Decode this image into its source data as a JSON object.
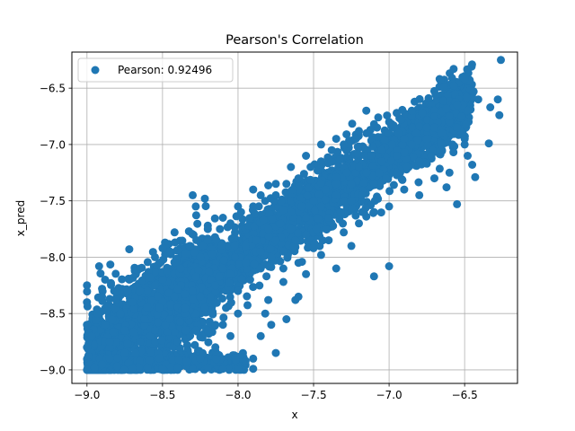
{
  "chart_data": {
    "type": "scatter",
    "title": "Pearson's Correlation",
    "xlabel": "x",
    "ylabel": "x_pred",
    "xlim": [
      -9.1,
      -6.15
    ],
    "ylim": [
      -9.12,
      -6.18
    ],
    "xticks": [
      -9.0,
      -8.5,
      -8.0,
      -7.5,
      -7.0,
      -6.5
    ],
    "xtick_labels": [
      "−9.0",
      "−8.5",
      "−8.0",
      "−7.5",
      "−7.0",
      "−6.5"
    ],
    "yticks": [
      -9.0,
      -8.5,
      -8.0,
      -7.5,
      -7.0,
      -6.5
    ],
    "ytick_labels": [
      "−9.0",
      "−8.5",
      "−8.0",
      "−7.5",
      "−7.0",
      "−6.5"
    ],
    "grid": true,
    "legend": {
      "position": "top-left",
      "entries": [
        "Pearson: 0.92496"
      ]
    },
    "color": "#1f77b4",
    "series": [
      {
        "name": "Pearson: 0.92496",
        "points": [
          [
            -9.0,
            -9.0
          ],
          [
            -8.95,
            -8.98
          ],
          [
            -8.9,
            -8.95
          ],
          [
            -8.85,
            -8.9
          ],
          [
            -8.8,
            -8.97
          ],
          [
            -8.7,
            -8.99
          ],
          [
            -8.6,
            -8.98
          ],
          [
            -8.5,
            -8.99
          ],
          [
            -8.4,
            -8.98
          ],
          [
            -8.3,
            -8.99
          ],
          [
            -8.2,
            -8.98
          ],
          [
            -8.1,
            -8.99
          ],
          [
            -8.0,
            -8.99
          ],
          [
            -7.9,
            -8.99
          ],
          [
            -9.0,
            -8.8
          ],
          [
            -9.0,
            -8.6
          ],
          [
            -9.0,
            -8.4
          ],
          [
            -9.0,
            -8.25
          ],
          [
            -8.97,
            -8.7
          ],
          [
            -8.93,
            -8.5
          ],
          [
            -8.9,
            -8.35
          ],
          [
            -8.92,
            -8.08
          ],
          [
            -8.88,
            -8.6
          ],
          [
            -8.85,
            -8.75
          ],
          [
            -8.82,
            -8.3
          ],
          [
            -8.78,
            -8.5
          ],
          [
            -8.75,
            -8.65
          ],
          [
            -8.72,
            -8.2
          ],
          [
            -8.7,
            -8.4
          ],
          [
            -8.68,
            -8.85
          ],
          [
            -8.65,
            -8.1
          ],
          [
            -8.62,
            -8.55
          ],
          [
            -8.6,
            -8.3
          ],
          [
            -8.58,
            -8.7
          ],
          [
            -8.55,
            -8.0
          ],
          [
            -8.52,
            -8.45
          ],
          [
            -8.5,
            -8.2
          ],
          [
            -8.48,
            -8.6
          ],
          [
            -8.45,
            -7.95
          ],
          [
            -8.42,
            -8.35
          ],
          [
            -8.4,
            -8.75
          ],
          [
            -8.38,
            -8.1
          ],
          [
            -8.35,
            -8.5
          ],
          [
            -8.32,
            -7.9
          ],
          [
            -8.3,
            -8.3
          ],
          [
            -8.28,
            -8.65
          ],
          [
            -8.25,
            -8.0
          ],
          [
            -8.22,
            -8.45
          ],
          [
            -8.2,
            -7.85
          ],
          [
            -8.18,
            -8.2
          ],
          [
            -8.15,
            -8.6
          ],
          [
            -8.12,
            -7.75
          ],
          [
            -8.1,
            -8.1
          ],
          [
            -8.08,
            -8.45
          ],
          [
            -8.05,
            -7.7
          ],
          [
            -8.02,
            -8.0
          ],
          [
            -8.0,
            -8.3
          ],
          [
            -7.98,
            -7.6
          ],
          [
            -7.95,
            -7.9
          ],
          [
            -7.92,
            -8.2
          ],
          [
            -7.9,
            -7.55
          ],
          [
            -7.88,
            -7.85
          ],
          [
            -7.85,
            -8.1
          ],
          [
            -7.82,
            -7.5
          ],
          [
            -7.8,
            -7.75
          ],
          [
            -7.78,
            -8.0
          ],
          [
            -7.75,
            -7.45
          ],
          [
            -7.72,
            -7.7
          ],
          [
            -7.7,
            -7.95
          ],
          [
            -7.68,
            -7.35
          ],
          [
            -7.65,
            -7.6
          ],
          [
            -7.62,
            -7.85
          ],
          [
            -7.6,
            -7.3
          ],
          [
            -7.58,
            -7.55
          ],
          [
            -7.55,
            -7.8
          ],
          [
            -7.52,
            -7.2
          ],
          [
            -7.5,
            -7.5
          ],
          [
            -7.48,
            -7.75
          ],
          [
            -7.45,
            -7.15
          ],
          [
            -7.42,
            -7.4
          ],
          [
            -7.4,
            -7.65
          ],
          [
            -7.38,
            -7.05
          ],
          [
            -7.35,
            -7.35
          ],
          [
            -7.32,
            -7.6
          ],
          [
            -7.3,
            -7.0
          ],
          [
            -7.28,
            -7.25
          ],
          [
            -7.25,
            -7.5
          ],
          [
            -7.22,
            -6.95
          ],
          [
            -7.2,
            -7.2
          ],
          [
            -7.18,
            -7.45
          ],
          [
            -7.15,
            -6.9
          ],
          [
            -7.12,
            -7.1
          ],
          [
            -7.1,
            -7.35
          ],
          [
            -7.08,
            -6.85
          ],
          [
            -7.05,
            -7.05
          ],
          [
            -7.02,
            -7.3
          ],
          [
            -7.0,
            -6.8
          ],
          [
            -6.98,
            -7.0
          ],
          [
            -6.95,
            -7.25
          ],
          [
            -6.92,
            -6.78
          ],
          [
            -6.9,
            -6.95
          ],
          [
            -6.88,
            -7.2
          ],
          [
            -6.85,
            -6.75
          ],
          [
            -6.82,
            -6.9
          ],
          [
            -6.8,
            -7.15
          ],
          [
            -6.78,
            -6.72
          ],
          [
            -6.75,
            -6.85
          ],
          [
            -6.72,
            -7.1
          ],
          [
            -6.7,
            -6.7
          ],
          [
            -6.68,
            -6.8
          ],
          [
            -6.65,
            -7.05
          ],
          [
            -6.62,
            -6.68
          ],
          [
            -6.6,
            -6.8
          ],
          [
            -6.58,
            -7.0
          ],
          [
            -6.55,
            -6.65
          ],
          [
            -6.52,
            -6.75
          ],
          [
            -6.5,
            -6.95
          ],
          [
            -6.48,
            -6.7
          ],
          [
            -6.5,
            -6.42
          ],
          [
            -6.44,
            -6.53
          ],
          [
            -6.41,
            -6.6
          ],
          [
            -6.34,
            -6.99
          ],
          [
            -6.33,
            -6.67
          ],
          [
            -6.28,
            -6.6
          ],
          [
            -6.27,
            -6.74
          ],
          [
            -6.26,
            -6.25
          ],
          [
            -6.43,
            -7.29
          ],
          [
            -6.55,
            -7.53
          ],
          [
            -6.75,
            -7.17
          ],
          [
            -7.0,
            -8.08
          ],
          [
            -7.1,
            -8.17
          ],
          [
            -7.25,
            -7.9
          ],
          [
            -7.35,
            -8.1
          ],
          [
            -7.45,
            -7.98
          ],
          [
            -7.55,
            -8.15
          ],
          [
            -7.6,
            -8.35
          ],
          [
            -7.7,
            -8.22
          ],
          [
            -7.8,
            -8.38
          ],
          [
            -7.82,
            -8.5
          ],
          [
            -7.85,
            -8.7
          ],
          [
            -7.9,
            -8.9
          ],
          [
            -7.95,
            -8.92
          ],
          [
            -8.05,
            -8.7
          ],
          [
            -8.1,
            -8.6
          ],
          [
            -8.15,
            -8.8
          ],
          [
            -8.2,
            -8.65
          ],
          [
            -8.25,
            -8.9
          ],
          [
            -8.0,
            -8.5
          ],
          [
            -7.75,
            -8.85
          ],
          [
            -7.68,
            -8.55
          ],
          [
            -7.78,
            -8.6
          ],
          [
            -7.62,
            -8.38
          ],
          [
            -8.2,
            -7.72
          ],
          [
            -8.1,
            -7.65
          ],
          [
            -8.0,
            -7.55
          ],
          [
            -7.9,
            -7.4
          ],
          [
            -7.85,
            -7.45
          ],
          [
            -7.75,
            -7.35
          ],
          [
            -7.65,
            -7.2
          ],
          [
            -7.55,
            -7.1
          ],
          [
            -7.45,
            -7.0
          ],
          [
            -7.35,
            -6.95
          ],
          [
            -7.2,
            -6.88
          ],
          [
            -7.1,
            -6.82
          ],
          [
            -6.95,
            -6.72
          ],
          [
            -6.85,
            -6.7
          ],
          [
            -6.7,
            -6.75
          ],
          [
            -6.6,
            -6.75
          ],
          [
            -6.55,
            -6.85
          ],
          [
            -6.5,
            -7.0
          ],
          [
            -6.48,
            -7.1
          ],
          [
            -6.45,
            -7.18
          ],
          [
            -6.6,
            -7.25
          ],
          [
            -6.62,
            -7.38
          ],
          [
            -6.7,
            -7.3
          ],
          [
            -6.8,
            -7.45
          ],
          [
            -6.9,
            -7.4
          ],
          [
            -7.0,
            -7.55
          ],
          [
            -7.1,
            -7.6
          ],
          [
            -7.2,
            -7.7
          ],
          [
            -7.3,
            -7.78
          ],
          [
            -7.4,
            -7.85
          ],
          [
            -7.5,
            -7.92
          ],
          [
            -7.6,
            -8.05
          ],
          [
            -7.7,
            -8.1
          ],
          [
            -8.3,
            -7.45
          ],
          [
            -8.28,
            -7.55
          ],
          [
            -8.22,
            -7.48
          ],
          [
            -8.42,
            -7.78
          ],
          [
            -8.5,
            -7.92
          ],
          [
            -8.55,
            -8.25
          ],
          [
            -8.65,
            -8.3
          ],
          [
            -8.72,
            -7.93
          ],
          [
            -8.8,
            -8.3
          ],
          [
            -8.88,
            -8.2
          ],
          [
            -8.9,
            -8.28
          ],
          [
            -6.7,
            -6.85
          ],
          [
            -6.65,
            -6.9
          ],
          [
            -6.75,
            -6.95
          ],
          [
            -6.85,
            -7.0
          ],
          [
            -6.95,
            -7.1
          ],
          [
            -7.05,
            -7.15
          ],
          [
            -7.15,
            -7.25
          ],
          [
            -7.25,
            -7.35
          ],
          [
            -7.35,
            -7.45
          ],
          [
            -7.45,
            -7.55
          ],
          [
            -7.55,
            -7.65
          ],
          [
            -7.65,
            -7.75
          ],
          [
            -7.75,
            -7.85
          ],
          [
            -7.85,
            -7.95
          ],
          [
            -7.95,
            -8.05
          ],
          [
            -8.05,
            -8.15
          ],
          [
            -8.15,
            -8.25
          ],
          [
            -8.25,
            -8.35
          ],
          [
            -8.35,
            -8.45
          ],
          [
            -8.45,
            -8.55
          ],
          [
            -8.55,
            -8.65
          ],
          [
            -8.65,
            -8.75
          ],
          [
            -8.75,
            -8.85
          ]
        ],
        "bands": [
          {
            "x": [
              -9.0,
              -8.15
            ],
            "center_slope": 0.92,
            "center_x": -8.6,
            "center_y": -8.55,
            "half_width": 0.45,
            "count": 1400
          },
          {
            "x": [
              -8.4,
              -6.45
            ],
            "center_slope": 0.92,
            "center_x": -7.5,
            "center_y": -7.55,
            "half_width": 0.28,
            "count": 2600
          },
          {
            "x": [
              -9.0,
              -7.95
            ],
            "center_slope": 0.0,
            "center_x": -8.5,
            "center_y": -8.93,
            "half_width": 0.07,
            "count": 500
          }
        ]
      }
    ]
  }
}
